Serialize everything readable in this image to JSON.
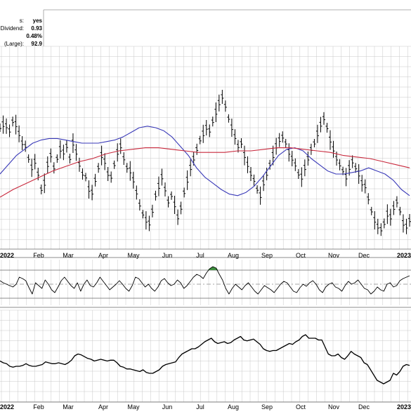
{
  "stats": [
    {
      "label": "s:",
      "value": "yes"
    },
    {
      "label": "al Dividend:",
      "value": "0.93"
    },
    {
      "label": "",
      "value": "0.48%"
    },
    {
      "label": "(Large):",
      "value": "92.9"
    }
  ],
  "colors": {
    "price": "#000000",
    "ma_short": "#3a3ab8",
    "ma_long": "#c8283c",
    "grid": "#c8c8c8",
    "overbought_fill": "#3f8f3f"
  },
  "chart_data": [
    {
      "type": "ohlc",
      "panel": "price",
      "x_tick_labels": [
        "2022",
        "Feb",
        "Mar",
        "Apr",
        "May",
        "Jun",
        "Jul",
        "Aug",
        "Sep",
        "Oct",
        "Nov",
        "Dec",
        "2023"
      ],
      "series": [
        {
          "kind": "bars",
          "values": [
            70,
            72,
            71,
            68,
            74,
            72,
            66,
            60,
            58,
            50,
            44,
            48,
            40,
            30,
            34,
            46,
            52,
            44,
            50,
            56,
            54,
            58,
            50,
            60,
            54,
            46,
            40,
            38,
            30,
            28,
            36,
            44,
            52,
            48,
            40,
            38,
            46,
            54,
            58,
            50,
            44,
            42,
            36,
            28,
            20,
            14,
            10,
            8,
            16,
            26,
            32,
            38,
            30,
            22,
            26,
            20,
            12,
            18,
            28,
            36,
            44,
            50,
            56,
            62,
            66,
            70,
            68,
            74,
            80,
            86,
            90,
            84,
            76,
            70,
            64,
            58,
            60,
            52,
            46,
            40,
            36,
            30,
            26,
            34,
            40,
            46,
            52,
            58,
            62,
            64,
            60,
            54,
            50,
            46,
            40,
            38,
            44,
            50,
            56,
            60,
            66,
            72,
            76,
            70,
            62,
            56,
            50,
            46,
            42,
            38,
            44,
            48,
            44,
            40,
            34,
            32,
            24,
            16,
            10,
            6,
            4,
            8,
            14,
            12,
            18,
            22,
            16,
            8,
            6,
            10
          ]
        },
        {
          "kind": "moving_average",
          "values": [
            40,
            46,
            52,
            56,
            60,
            62,
            63,
            63,
            62,
            61,
            60,
            60,
            60,
            61,
            62,
            64,
            67,
            70,
            71,
            70,
            68,
            64,
            58,
            52,
            44,
            38,
            34,
            30,
            27,
            26,
            28,
            32,
            38,
            45,
            52,
            56,
            57,
            55,
            50,
            46,
            42,
            40,
            40,
            41,
            42,
            44,
            42,
            40,
            36,
            30,
            26
          ]
        },
        {
          "kind": "moving_average",
          "values": [
            25,
            30,
            34,
            38,
            42,
            45,
            48,
            50,
            53,
            55,
            56,
            57,
            57,
            56,
            55,
            54,
            54,
            54,
            55,
            55,
            56,
            57,
            57,
            56,
            55,
            54,
            52,
            51,
            50,
            48,
            46,
            44
          ]
        }
      ]
    },
    {
      "type": "line",
      "panel": "indicator",
      "overbought": 70,
      "oversold": 30,
      "values": [
        55,
        52,
        50,
        48,
        46,
        50,
        60,
        58,
        55,
        45,
        36,
        52,
        48,
        44,
        56,
        50,
        42,
        38,
        46,
        55,
        60,
        54,
        48,
        44,
        52,
        40,
        50,
        56,
        48,
        46,
        52,
        60,
        54,
        48,
        42,
        46,
        50,
        55,
        50,
        44,
        40,
        48,
        60,
        58,
        52,
        46,
        50,
        44,
        40,
        46,
        55,
        58,
        52,
        48,
        50,
        56,
        52,
        44,
        48,
        54,
        60,
        64,
        62,
        58,
        66,
        72,
        75,
        73,
        64,
        56,
        44,
        36,
        44,
        50,
        46,
        42,
        48,
        52,
        46,
        40,
        36,
        42,
        48,
        45,
        42,
        38,
        44,
        50,
        54,
        52,
        46,
        40,
        38,
        45,
        50,
        47,
        52,
        55,
        50,
        42,
        38,
        46,
        50,
        52,
        46,
        44,
        40,
        48,
        54,
        50,
        52,
        56,
        50,
        44,
        42,
        36,
        40,
        46,
        42,
        40,
        50,
        52,
        46,
        48,
        55,
        58,
        60,
        62
      ]
    },
    {
      "type": "line",
      "panel": "relative",
      "values": [
        36,
        34,
        33,
        30,
        29,
        30,
        30,
        31,
        33,
        31,
        30,
        30,
        31,
        32,
        35,
        34,
        33,
        33,
        34,
        33,
        32,
        34,
        37,
        42,
        44,
        43,
        41,
        39,
        38,
        36,
        37,
        38,
        37,
        36,
        37,
        37,
        34,
        30,
        29,
        27,
        27,
        26,
        25,
        24,
        26,
        23,
        22,
        22,
        24,
        26,
        30,
        32,
        33,
        34,
        35,
        40,
        44,
        46,
        48,
        50,
        50,
        52,
        55,
        58,
        60,
        62,
        58,
        56,
        57,
        58,
        56,
        57,
        60,
        62,
        64,
        60,
        59,
        60,
        61,
        58,
        55,
        50,
        48,
        47,
        48,
        48,
        50,
        52,
        54,
        56,
        55,
        58,
        60,
        64,
        66,
        62,
        62,
        62,
        60,
        60,
        52,
        44,
        42,
        42,
        44,
        40,
        38,
        42,
        47,
        44,
        42,
        40,
        34,
        32,
        26,
        20,
        14,
        12,
        10,
        12,
        14,
        22,
        20,
        24,
        30,
        32,
        31
      ]
    }
  ]
}
